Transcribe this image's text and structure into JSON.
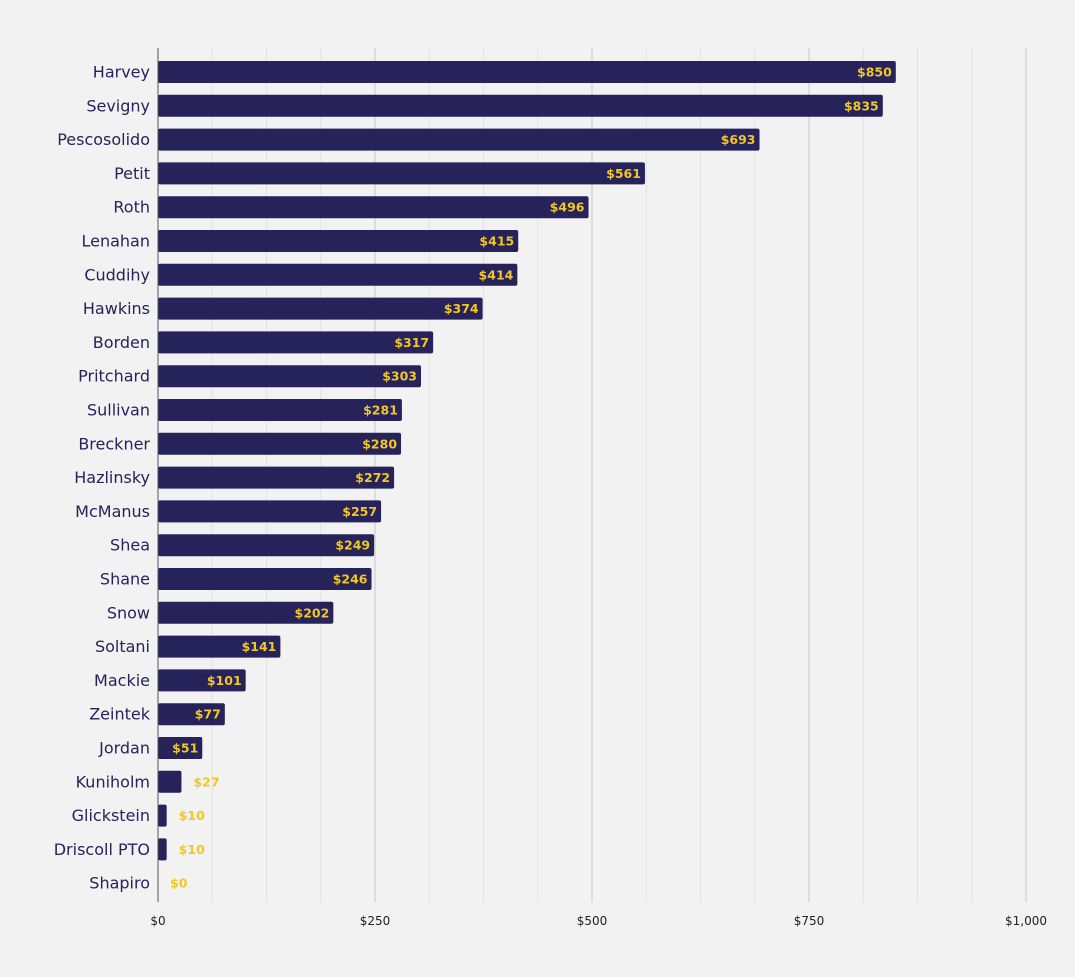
{
  "chart_data": {
    "type": "bar",
    "orientation": "horizontal",
    "categories": [
      "Harvey",
      "Sevigny",
      "Pescosolido",
      "Petit",
      "Roth",
      "Lenahan",
      "Cuddihy",
      "Hawkins",
      "Borden",
      "Pritchard",
      "Sullivan",
      "Breckner",
      "Hazlinsky",
      "McManus",
      "Shea",
      "Shane",
      "Snow",
      "Soltani",
      "Mackie",
      "Zeintek",
      "Jordan",
      "Kuniholm",
      "Glickstein",
      "Driscoll PTO",
      "Shapiro"
    ],
    "values": [
      850,
      835,
      693,
      561,
      496,
      415,
      414,
      374,
      317,
      303,
      281,
      280,
      272,
      257,
      249,
      246,
      202,
      141,
      101,
      77,
      51,
      27,
      10,
      10,
      0
    ],
    "value_labels": [
      "$850",
      "$835",
      "$693",
      "$561",
      "$496",
      "$415",
      "$414",
      "$374",
      "$317",
      "$303",
      "$281",
      "$280",
      "$272",
      "$257",
      "$249",
      "$246",
      "$202",
      "$141",
      "$101",
      "$77",
      "$51",
      "$27",
      "$10",
      "$10",
      "$0"
    ],
    "x_ticks": [
      0,
      250,
      500,
      750,
      1000
    ],
    "x_tick_labels": [
      "$0",
      "$250",
      "$500",
      "$750",
      "$1,000"
    ],
    "xlim": [
      0,
      1000
    ],
    "title": "",
    "xlabel": "",
    "ylabel": "",
    "grid": true,
    "minor_grid_step": 62.5,
    "colors": {
      "background": "#f2f2f2",
      "bar": "#25235a",
      "value_label": "#f3c623",
      "category_label": "#25235a"
    }
  }
}
